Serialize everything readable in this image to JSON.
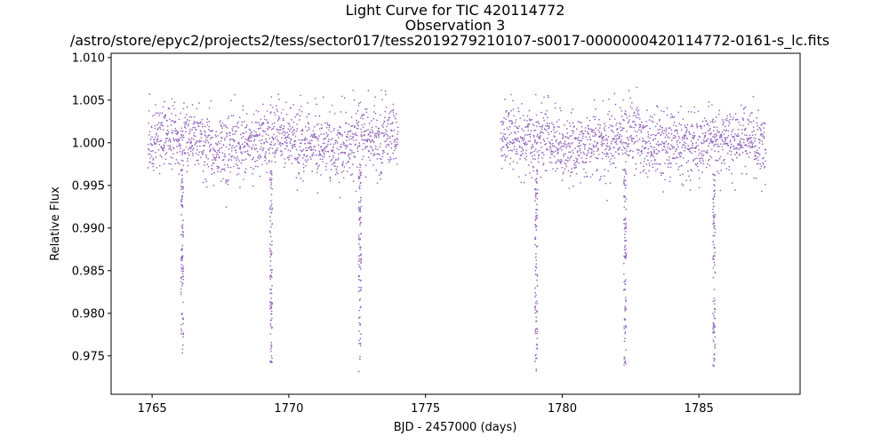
{
  "chart_data": {
    "type": "scatter",
    "title_lines": [
      "Light Curve for TIC 420114772",
      "Observation 3",
      "/astro/store/epyc2/projects2/tess/sector017/tess2019279210107-s0017-0000000420114772-0161-s_lc.fits"
    ],
    "xlabel": "BJD - 2457000 (days)",
    "ylabel": "Relative Flux",
    "xlim": [
      1763.5,
      1788.7
    ],
    "ylim": [
      0.9705,
      1.0105
    ],
    "xticks": [
      1765,
      1770,
      1775,
      1780,
      1785
    ],
    "xtick_labels": [
      "1765",
      "1770",
      "1775",
      "1780",
      "1785"
    ],
    "yticks": [
      0.975,
      0.98,
      0.985,
      0.99,
      0.995,
      1.0,
      1.005,
      1.01
    ],
    "ytick_labels": [
      "0.975",
      "0.980",
      "0.985",
      "0.990",
      "0.995",
      "1.000",
      "1.005",
      "1.010"
    ],
    "grid": false,
    "marker_color": "#9467bd",
    "series": [
      {
        "name": "Relative Flux",
        "segments": [
          {
            "x_start": 1764.85,
            "x_end": 1774.0,
            "baseline": 1.0,
            "scatter": 0.002
          },
          {
            "x_start": 1777.75,
            "x_end": 1787.45,
            "baseline": 1.0,
            "scatter": 0.002
          }
        ],
        "transits": [
          {
            "center": 1766.1,
            "depth_min": 0.975
          },
          {
            "center": 1769.35,
            "depth_min": 0.974
          },
          {
            "center": 1772.6,
            "depth_min": 0.973
          },
          {
            "center": 1779.05,
            "depth_min": 0.973
          },
          {
            "center": 1782.3,
            "depth_min": 0.973
          },
          {
            "center": 1785.55,
            "depth_min": 0.9735
          }
        ]
      }
    ]
  }
}
